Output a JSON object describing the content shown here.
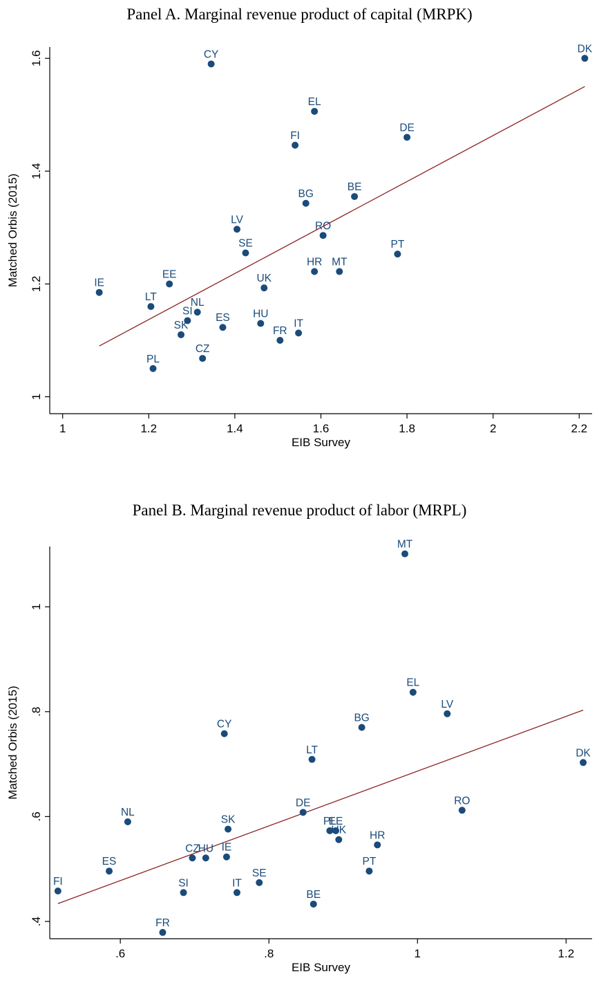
{
  "chart_data": [
    {
      "type": "scatter",
      "title": "Panel A. Marginal revenue product of capital (MRPK)",
      "xlabel": "EIB Survey",
      "ylabel": "Matched Orbis (2015)",
      "xlim": [
        0.97,
        2.23
      ],
      "ylim": [
        0.97,
        1.62
      ],
      "xticks": [
        1,
        1.2,
        1.4,
        1.6,
        1.8,
        2,
        2.2
      ],
      "xtick_labels": [
        "1",
        "1.2",
        "1.4",
        "1.6",
        "1.8",
        "2",
        "2.2"
      ],
      "yticks": [
        1,
        1.2,
        1.4,
        1.6
      ],
      "ytick_labels": [
        "1",
        "1.2",
        "1.4",
        "1.6"
      ],
      "points": [
        {
          "label": "CY",
          "x": 1.345,
          "y": 1.59
        },
        {
          "label": "DK",
          "x": 2.213,
          "y": 1.6
        },
        {
          "label": "EL",
          "x": 1.585,
          "y": 1.506
        },
        {
          "label": "FI",
          "x": 1.54,
          "y": 1.446
        },
        {
          "label": "DE",
          "x": 1.8,
          "y": 1.46
        },
        {
          "label": "BG",
          "x": 1.565,
          "y": 1.343
        },
        {
          "label": "BE",
          "x": 1.678,
          "y": 1.355
        },
        {
          "label": "LV",
          "x": 1.405,
          "y": 1.297
        },
        {
          "label": "RO",
          "x": 1.605,
          "y": 1.286
        },
        {
          "label": "SE",
          "x": 1.425,
          "y": 1.255
        },
        {
          "label": "PT",
          "x": 1.778,
          "y": 1.253
        },
        {
          "label": "HR",
          "x": 1.585,
          "y": 1.222
        },
        {
          "label": "MT",
          "x": 1.643,
          "y": 1.222
        },
        {
          "label": "UK",
          "x": 1.468,
          "y": 1.193
        },
        {
          "label": "IE",
          "x": 1.085,
          "y": 1.185
        },
        {
          "label": "EE",
          "x": 1.248,
          "y": 1.2
        },
        {
          "label": "LT",
          "x": 1.205,
          "y": 1.16
        },
        {
          "label": "NL",
          "x": 1.313,
          "y": 1.15
        },
        {
          "label": "SI",
          "x": 1.29,
          "y": 1.135
        },
        {
          "label": "SK",
          "x": 1.275,
          "y": 1.11
        },
        {
          "label": "ES",
          "x": 1.372,
          "y": 1.123
        },
        {
          "label": "HU",
          "x": 1.46,
          "y": 1.13
        },
        {
          "label": "IT",
          "x": 1.548,
          "y": 1.113
        },
        {
          "label": "FR",
          "x": 1.505,
          "y": 1.1
        },
        {
          "label": "CZ",
          "x": 1.325,
          "y": 1.068
        },
        {
          "label": "PL",
          "x": 1.21,
          "y": 1.05
        }
      ],
      "fit_line": {
        "x": [
          1.085,
          2.213
        ],
        "y": [
          1.09,
          1.55
        ]
      },
      "colors": {
        "marker": "#1a4b7a",
        "label": "#1a4b7a",
        "fit_line": "#8b2323"
      }
    },
    {
      "type": "scatter",
      "title": "Panel B. Marginal revenue product of labor (MRPL)",
      "xlabel": "EIB Survey",
      "ylabel": "Matched Orbis (2015)",
      "xlim": [
        0.505,
        1.235
      ],
      "ylim": [
        0.367,
        1.115
      ],
      "xticks": [
        0.6,
        0.8,
        1,
        1.2
      ],
      "xtick_labels": [
        ".6",
        ".8",
        "1",
        "1.2"
      ],
      "yticks": [
        0.4,
        0.6,
        0.8,
        1
      ],
      "ytick_labels": [
        ".4",
        ".6",
        ".8",
        "1"
      ],
      "points": [
        {
          "label": "MT",
          "x": 0.983,
          "y": 1.101
        },
        {
          "label": "EL",
          "x": 0.994,
          "y": 0.837
        },
        {
          "label": "LV",
          "x": 1.04,
          "y": 0.796
        },
        {
          "label": "BG",
          "x": 0.925,
          "y": 0.77
        },
        {
          "label": "CY",
          "x": 0.74,
          "y": 0.758
        },
        {
          "label": "LT",
          "x": 0.858,
          "y": 0.709
        },
        {
          "label": "DK",
          "x": 1.223,
          "y": 0.703
        },
        {
          "label": "RO",
          "x": 1.06,
          "y": 0.612
        },
        {
          "label": "DE",
          "x": 0.846,
          "y": 0.608
        },
        {
          "label": "NL",
          "x": 0.61,
          "y": 0.59
        },
        {
          "label": "SK",
          "x": 0.745,
          "y": 0.576
        },
        {
          "label": "PL",
          "x": 0.882,
          "y": 0.573
        },
        {
          "label": "EE",
          "x": 0.89,
          "y": 0.573
        },
        {
          "label": "UK",
          "x": 0.894,
          "y": 0.556
        },
        {
          "label": "HR",
          "x": 0.946,
          "y": 0.546
        },
        {
          "label": "CZ",
          "x": 0.697,
          "y": 0.521
        },
        {
          "label": "HU",
          "x": 0.715,
          "y": 0.521
        },
        {
          "label": "IE",
          "x": 0.743,
          "y": 0.523
        },
        {
          "label": "ES",
          "x": 0.585,
          "y": 0.496
        },
        {
          "label": "PT",
          "x": 0.935,
          "y": 0.496
        },
        {
          "label": "SE",
          "x": 0.787,
          "y": 0.474
        },
        {
          "label": "FI",
          "x": 0.516,
          "y": 0.458
        },
        {
          "label": "SI",
          "x": 0.685,
          "y": 0.455
        },
        {
          "label": "IT",
          "x": 0.757,
          "y": 0.455
        },
        {
          "label": "BE",
          "x": 0.86,
          "y": 0.433
        },
        {
          "label": "FR",
          "x": 0.657,
          "y": 0.379
        }
      ],
      "fit_line": {
        "x": [
          0.516,
          1.223
        ],
        "y": [
          0.434,
          0.803
        ]
      },
      "colors": {
        "marker": "#1a4b7a",
        "label": "#1a4b7a",
        "fit_line": "#8b2323"
      }
    }
  ]
}
